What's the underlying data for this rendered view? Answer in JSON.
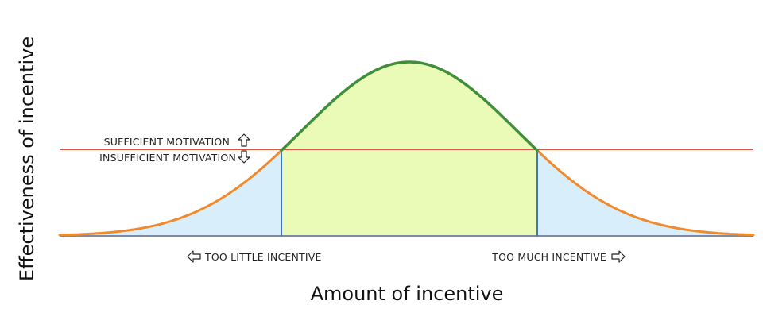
{
  "diagram": {
    "y_axis_label": "Effectiveness of incentive",
    "x_axis_label": "Amount of incentive",
    "threshold_above_label": "SUFFICIENT MOTIVATION",
    "threshold_below_label": "INSUFFICIENT MOTIVATION",
    "left_region_label": "TOO LITTLE INCENTIVE",
    "right_region_label": "TOO MUCH INCENTIVE",
    "colors": {
      "curve_outer": "#f08a2c",
      "curve_inner": "#3f8f3a",
      "fill_outer": "#d8eefb",
      "fill_inner": "#e9fbb6",
      "threshold_line": "#d9573f",
      "boundary_lines": "#3f78b5",
      "baseline": "#7a8aa8"
    },
    "icons": [
      "arrow-up-outline-icon",
      "arrow-down-outline-icon",
      "arrow-left-outline-icon",
      "arrow-right-outline-icon"
    ]
  }
}
